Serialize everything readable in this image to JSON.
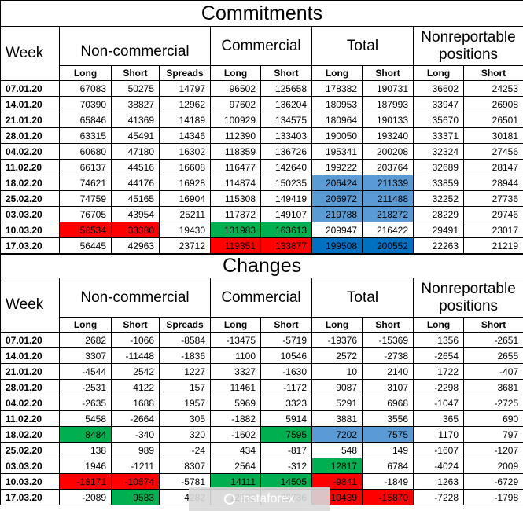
{
  "commitments": {
    "title": "Commitments",
    "week_label": "Week",
    "groups": [
      "Non-commercial",
      "Commercial",
      "Total",
      "Nonreportable positions"
    ],
    "subheaders": [
      "Long",
      "Short",
      "Spreads",
      "Long",
      "Short",
      "Long",
      "Short",
      "Long",
      "Short"
    ],
    "rows": [
      {
        "date": "07.01.20",
        "values": [
          "67083",
          "50275",
          "14797",
          "96502",
          "125658",
          "178382",
          "190731",
          "36602",
          "24253"
        ]
      },
      {
        "date": "14.01.20",
        "values": [
          "70390",
          "38827",
          "12962",
          "97602",
          "136204",
          "180953",
          "187993",
          "33947",
          "26908"
        ]
      },
      {
        "date": "21.01.20",
        "values": [
          "65846",
          "41369",
          "14189",
          "100929",
          "134575",
          "180964",
          "190133",
          "35670",
          "26501"
        ]
      },
      {
        "date": "28.01.20",
        "values": [
          "63315",
          "45491",
          "14346",
          "112390",
          "133403",
          "190050",
          "193240",
          "33371",
          "30181"
        ]
      },
      {
        "date": "04.02.20",
        "values": [
          "60680",
          "47180",
          "16302",
          "118359",
          "136726",
          "195341",
          "200208",
          "32324",
          "27456"
        ]
      },
      {
        "date": "11.02.20",
        "values": [
          "66137",
          "44516",
          "16608",
          "116477",
          "142640",
          "199222",
          "203764",
          "32689",
          "28147"
        ]
      },
      {
        "date": "18.02.20",
        "values": [
          "74621",
          "44176",
          "16928",
          "114874",
          "150235",
          "206424",
          "211339",
          "33859",
          "28944"
        ]
      },
      {
        "date": "25.02.20",
        "values": [
          "74759",
          "45165",
          "16904",
          "115308",
          "149419",
          "206972",
          "211488",
          "32252",
          "27736"
        ]
      },
      {
        "date": "03.03.20",
        "values": [
          "76705",
          "43954",
          "25211",
          "117872",
          "149107",
          "219788",
          "218272",
          "28229",
          "29746"
        ]
      },
      {
        "date": "10.03.20",
        "values": [
          "58534",
          "33380",
          "19430",
          "131983",
          "163613",
          "209947",
          "216422",
          "29491",
          "23017"
        ]
      },
      {
        "date": "17.03.20",
        "values": [
          "56445",
          "42963",
          "23712",
          "119351",
          "133877",
          "199508",
          "200552",
          "22263",
          "21219"
        ]
      }
    ]
  },
  "changes": {
    "title": "Changes",
    "week_label": "Week",
    "groups": [
      "Non-commercial",
      "Commercial",
      "Total",
      "Nonreportable positions"
    ],
    "subheaders": [
      "Long",
      "Short",
      "Spreads",
      "Long",
      "Short",
      "Long",
      "Short",
      "Long",
      "Short"
    ],
    "rows": [
      {
        "date": "07.01.20",
        "values": [
          "2682",
          "-1066",
          "-8584",
          "-13475",
          "-5719",
          "-19376",
          "-15369",
          "1356",
          "-2651"
        ]
      },
      {
        "date": "14.01.20",
        "values": [
          "3307",
          "-11448",
          "-1836",
          "1100",
          "10546",
          "2572",
          "-2738",
          "-2654",
          "2655"
        ]
      },
      {
        "date": "21.01.20",
        "values": [
          "-4544",
          "2542",
          "1227",
          "3327",
          "-1630",
          "10",
          "2140",
          "1722",
          "-407"
        ]
      },
      {
        "date": "28.01.20",
        "values": [
          "-2531",
          "4122",
          "157",
          "11461",
          "-1172",
          "9087",
          "3107",
          "-2298",
          "3681"
        ]
      },
      {
        "date": "04.02.20",
        "values": [
          "-2635",
          "1688",
          "1957",
          "5969",
          "3323",
          "5291",
          "6968",
          "-1047",
          "-2725"
        ]
      },
      {
        "date": "11.02.20",
        "values": [
          "5458",
          "-2664",
          "305",
          "-1882",
          "5914",
          "3881",
          "3556",
          "365",
          "690"
        ]
      },
      {
        "date": "18.02.20",
        "values": [
          "8484",
          "-340",
          "320",
          "-1602",
          "7595",
          "7202",
          "7575",
          "1170",
          "797"
        ]
      },
      {
        "date": "25.02.20",
        "values": [
          "138",
          "989",
          "-24",
          "434",
          "-817",
          "548",
          "149",
          "-1607",
          "-1207"
        ]
      },
      {
        "date": "03.03.20",
        "values": [
          "1946",
          "-1211",
          "8307",
          "2564",
          "-312",
          "12817",
          "6784",
          "-4024",
          "2009"
        ]
      },
      {
        "date": "10.03.20",
        "values": [
          "-18171",
          "-10574",
          "-5781",
          "14111",
          "14505",
          "-9841",
          "-1849",
          "1263",
          "-6729"
        ]
      },
      {
        "date": "17.03.20",
        "values": [
          "-2089",
          "9583",
          "4282",
          "-12632",
          "-29736",
          "-10439",
          "-15870",
          "-7228",
          "-1798"
        ]
      }
    ]
  },
  "highlights": {
    "commitments": [
      {
        "row": 6,
        "cols": [
          5,
          6
        ],
        "color": "lblue"
      },
      {
        "row": 7,
        "cols": [
          5,
          6
        ],
        "color": "lblue"
      },
      {
        "row": 8,
        "cols": [
          5,
          6
        ],
        "color": "lblue"
      },
      {
        "row": 9,
        "cols": [
          0,
          1
        ],
        "color": "red"
      },
      {
        "row": 9,
        "cols": [
          3,
          4
        ],
        "color": "green"
      },
      {
        "row": 10,
        "cols": [
          3,
          4
        ],
        "color": "red"
      },
      {
        "row": 10,
        "cols": [
          5,
          6
        ],
        "color": "dblue"
      }
    ],
    "changes": [
      {
        "row": 6,
        "cols": [
          0
        ],
        "color": "green"
      },
      {
        "row": 6,
        "cols": [
          4
        ],
        "color": "green"
      },
      {
        "row": 6,
        "cols": [
          5,
          6
        ],
        "color": "lblue"
      },
      {
        "row": 8,
        "cols": [
          5
        ],
        "color": "green"
      },
      {
        "row": 9,
        "cols": [
          0,
          1
        ],
        "color": "red"
      },
      {
        "row": 9,
        "cols": [
          3,
          4
        ],
        "color": "green"
      },
      {
        "row": 9,
        "cols": [
          5
        ],
        "color": "red"
      },
      {
        "row": 10,
        "cols": [
          1
        ],
        "color": "green"
      },
      {
        "row": 10,
        "cols": [
          5,
          6
        ],
        "color": "red"
      }
    ]
  },
  "colors": {
    "red": "#ff0000",
    "green": "#00b050",
    "lblue": "#5b9bd5",
    "dblue": "#0070c0"
  },
  "watermark": {
    "text": "instaforex",
    "icon": "instaforex-logo-icon"
  }
}
